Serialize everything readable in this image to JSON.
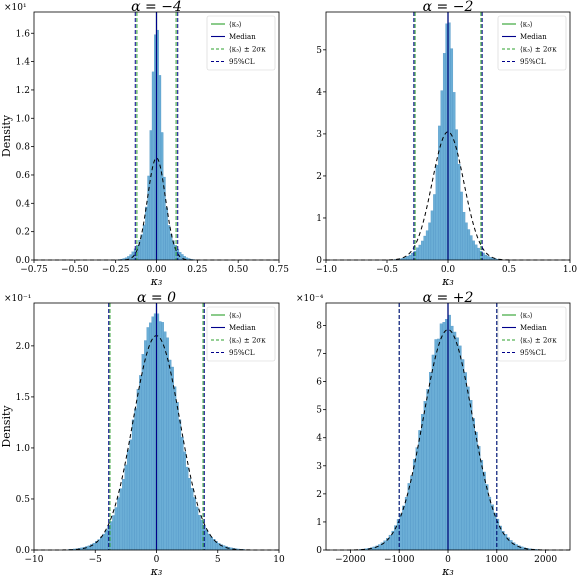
{
  "colors": {
    "hist": "#6baed6",
    "hist_edge": "#4a90c2",
    "mean": "#2ca02c",
    "median": "#00008b",
    "sigma": "#2ca02c",
    "cl95": "#00008b",
    "gauss": "#000000"
  },
  "legend_labels": [
    "⟨κ₃⟩",
    "Median",
    "⟨κ₃⟩ ± 2σκ",
    "95%CL"
  ],
  "chart_data": [
    {
      "type": "bar",
      "title": "α = −4",
      "xlabel": "κ₃",
      "ylabel": "Density",
      "offset_text": "×10¹",
      "xlim": [
        -0.75,
        0.75
      ],
      "ylim": [
        0,
        1.75
      ],
      "xticks": [
        -0.75,
        -0.5,
        -0.25,
        0.0,
        0.25,
        0.5,
        0.75
      ],
      "xtick_labels": [
        "−0.75",
        "−0.50",
        "−0.25",
        "0.00",
        "0.25",
        "0.50",
        "0.75"
      ],
      "yticks": [
        0.0,
        0.2,
        0.4,
        0.6,
        0.8,
        1.0,
        1.2,
        1.4,
        1.6
      ],
      "ytick_labels": [
        "0.0",
        "0.2",
        "0.4",
        "0.6",
        "0.8",
        "1.0",
        "1.2",
        "1.4",
        "1.6"
      ],
      "hist": {
        "center": 0.0,
        "peak": 1.62,
        "core_sigma": 0.028,
        "tail_sigma": 0.075,
        "tail_weight": 0.22,
        "bins": 80,
        "range": [
          -0.55,
          0.55
        ]
      },
      "gauss": {
        "mean": 0.0,
        "sigma": 0.055,
        "peak": 0.72
      },
      "mean": 0.0,
      "median": 0.0,
      "sigma_lines": [
        -0.12,
        0.12
      ],
      "cl95_lines": [
        -0.13,
        0.13
      ],
      "legend": "upper right"
    },
    {
      "type": "bar",
      "title": "α = −2",
      "xlabel": "κ₃",
      "ylabel": "",
      "offset_text": "",
      "xlim": [
        -1.0,
        1.0
      ],
      "ylim": [
        0,
        5.9
      ],
      "xticks": [
        -1.0,
        -0.5,
        0.0,
        0.5,
        1.0
      ],
      "xtick_labels": [
        "−1.0",
        "−0.5",
        "0.0",
        "0.5",
        "1.0"
      ],
      "yticks": [
        0,
        1,
        2,
        3,
        4,
        5
      ],
      "ytick_labels": [
        "0",
        "1",
        "2",
        "3",
        "4",
        "5"
      ],
      "hist": {
        "center": 0.0,
        "peak": 5.6,
        "core_sigma": 0.055,
        "tail_sigma": 0.14,
        "tail_weight": 0.25,
        "bins": 80,
        "range": [
          -0.8,
          0.8
        ]
      },
      "gauss": {
        "mean": 0.0,
        "sigma": 0.13,
        "peak": 3.05
      },
      "mean": 0.0,
      "median": 0.0,
      "sigma_lines": [
        -0.27,
        0.27
      ],
      "cl95_lines": [
        -0.28,
        0.28
      ],
      "legend": "upper right"
    },
    {
      "type": "bar",
      "title": "α = 0",
      "xlabel": "κ₃",
      "ylabel": "Density",
      "offset_text": "×10⁻¹",
      "xlim": [
        -10,
        10
      ],
      "ylim": [
        0,
        2.42
      ],
      "xticks": [
        -10,
        -5,
        0,
        5,
        10
      ],
      "xtick_labels": [
        "−10",
        "−5",
        "0",
        "5",
        "10"
      ],
      "yticks": [
        0.0,
        0.5,
        1.0,
        1.5,
        2.0
      ],
      "ytick_labels": [
        "0.0",
        "0.5",
        "1.0",
        "1.5",
        "2.0"
      ],
      "hist": {
        "center": 0.0,
        "peak": 2.33,
        "core_sigma": 1.55,
        "tail_sigma": 2.3,
        "tail_weight": 0.3,
        "bins": 80,
        "range": [
          -8,
          8
        ]
      },
      "gauss": {
        "mean": 0.0,
        "sigma": 1.9,
        "peak": 2.1
      },
      "mean": 0.0,
      "median": 0.0,
      "sigma_lines": [
        -3.8,
        3.8
      ],
      "cl95_lines": [
        -3.9,
        3.9
      ],
      "legend": "upper right"
    },
    {
      "type": "bar",
      "title": "α = +2",
      "xlabel": "κ₃",
      "ylabel": "",
      "offset_text": "×10⁻⁴",
      "xlim": [
        -2500,
        2500
      ],
      "ylim": [
        0,
        8.8
      ],
      "xticks": [
        -2000,
        -1000,
        0,
        1000,
        2000
      ],
      "xtick_labels": [
        "−2000",
        "−1000",
        "0",
        "1000",
        "2000"
      ],
      "yticks": [
        0,
        1,
        2,
        3,
        4,
        5,
        6,
        7,
        8
      ],
      "ytick_labels": [
        "0",
        "1",
        "2",
        "3",
        "4",
        "5",
        "6",
        "7",
        "8"
      ],
      "hist": {
        "center": 0.0,
        "peak": 8.3,
        "core_sigma": 450,
        "tail_sigma": 560,
        "tail_weight": 0.45,
        "bins": 80,
        "range": [
          -2200,
          2200
        ]
      },
      "gauss": {
        "mean": 0.0,
        "sigma": 500,
        "peak": 7.85
      },
      "mean": 0.0,
      "median": 0.0,
      "sigma_lines": [
        -1000,
        1000
      ],
      "cl95_lines": [
        -1000,
        1000
      ],
      "legend": "upper right"
    }
  ]
}
